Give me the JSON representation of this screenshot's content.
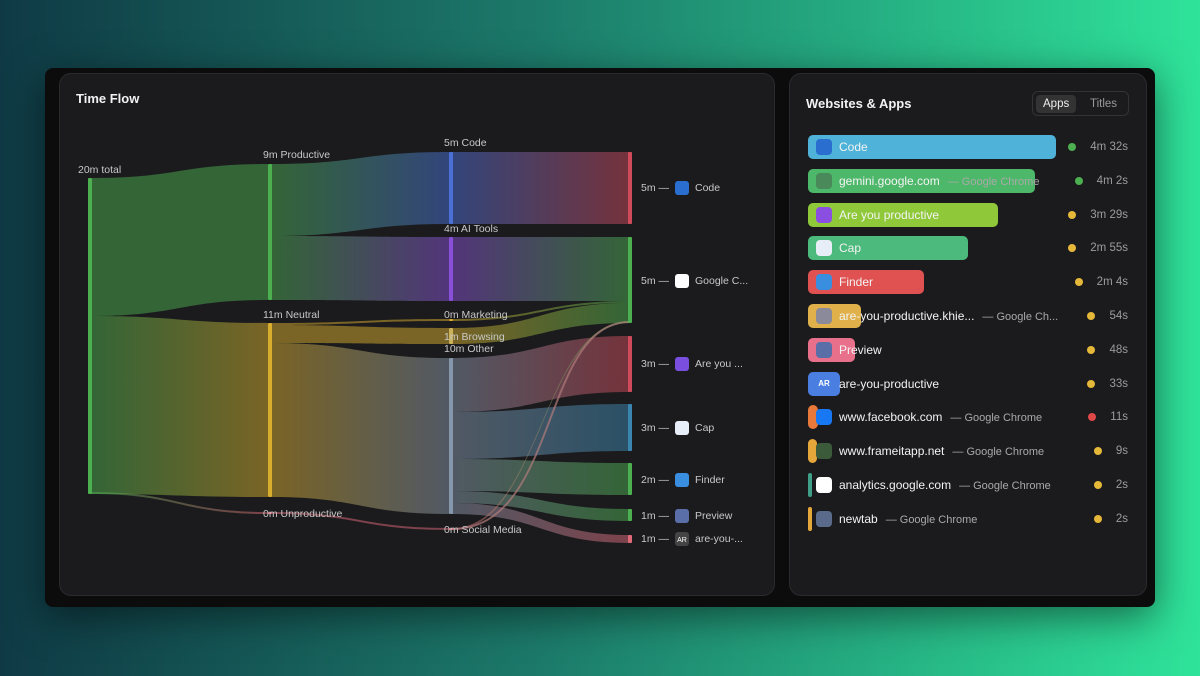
{
  "time_flow": {
    "title": "Time Flow",
    "nodes": [
      {
        "label": "20m total"
      },
      {
        "label": "9m Productive"
      },
      {
        "label": "11m Neutral"
      },
      {
        "label": "0m Unproductive"
      },
      {
        "label": "5m Code"
      },
      {
        "label": "4m AI Tools"
      },
      {
        "label": "0m Marketing"
      },
      {
        "label": "1m Browsing"
      },
      {
        "label": "10m Other"
      },
      {
        "label": "0m Social Media"
      }
    ],
    "outputs": [
      {
        "duration": "5m —",
        "app": "Code"
      },
      {
        "duration": "5m —",
        "app": "Google C..."
      },
      {
        "duration": "3m —",
        "app": "Are you ..."
      },
      {
        "duration": "3m —",
        "app": "Cap"
      },
      {
        "duration": "2m —",
        "app": "Finder"
      },
      {
        "duration": "1m —",
        "app": "Preview"
      },
      {
        "duration": "1m —",
        "app": "are-you-...",
        "icon_text": "AR"
      }
    ]
  },
  "websites_apps": {
    "title": "Websites & Apps",
    "tabs": [
      "Apps",
      "Titles"
    ],
    "items": [
      {
        "name": "Code",
        "time": "4m 32s"
      },
      {
        "name": "gemini.google.com",
        "detail": "— Google Chrome",
        "time": "4m 2s"
      },
      {
        "name": "Are you productive",
        "time": "3m 29s"
      },
      {
        "name": "Cap",
        "time": "2m 55s"
      },
      {
        "name": "Finder",
        "time": "2m 4s"
      },
      {
        "name": "are-you-productive.khie...",
        "detail": "— Google Ch...",
        "time": "54s"
      },
      {
        "name": "Preview",
        "time": "48s"
      },
      {
        "name": "are-you-productive",
        "icon_text": "AR",
        "time": "33s"
      },
      {
        "name": "www.facebook.com",
        "detail": "— Google Chrome",
        "time": "11s"
      },
      {
        "name": "www.frameitapp.net",
        "detail": "— Google Chrome",
        "time": "9s"
      },
      {
        "name": "analytics.google.com",
        "detail": "— Google Chrome",
        "time": "2s"
      },
      {
        "name": "newtab",
        "detail": "— Google Chrome",
        "time": "2s"
      }
    ]
  }
}
